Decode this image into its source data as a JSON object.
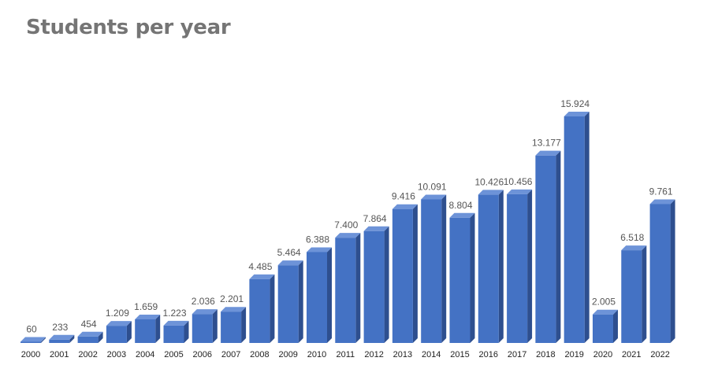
{
  "chart_data": {
    "type": "bar",
    "title": "Students per year",
    "xlabel": "",
    "ylabel": "",
    "categories": [
      "2000",
      "2001",
      "2002",
      "2003",
      "2004",
      "2005",
      "2006",
      "2007",
      "2008",
      "2009",
      "2010",
      "2011",
      "2012",
      "2013",
      "2014",
      "2015",
      "2016",
      "2017",
      "2018",
      "2019",
      "2020",
      "2021",
      "2022"
    ],
    "values": [
      60,
      233,
      454,
      1209,
      1659,
      1223,
      2036,
      2201,
      4485,
      5464,
      6388,
      7400,
      7864,
      9416,
      10091,
      8804,
      10426,
      10456,
      13177,
      15924,
      2005,
      6518,
      9761
    ],
    "value_labels": [
      "60",
      "233",
      "454",
      "1.209",
      "1.659",
      "1.223",
      "2.036",
      "2.201",
      "4.485",
      "5.464",
      "6.388",
      "7.400",
      "7.864",
      "9.416",
      "10.091",
      "8.804",
      "10.426",
      "10.456",
      "13.177",
      "15.924",
      "2.005",
      "6.518",
      "9.761"
    ],
    "ylim": [
      0,
      16000
    ],
    "grid": false,
    "legend": "none",
    "style": "3d-bar",
    "colors": {
      "front": "#4472c4",
      "top": "#6d93d8",
      "side": "#2e4f8f",
      "title": "#757575",
      "value_label": "#555555",
      "tick_label": "#222222"
    }
  }
}
